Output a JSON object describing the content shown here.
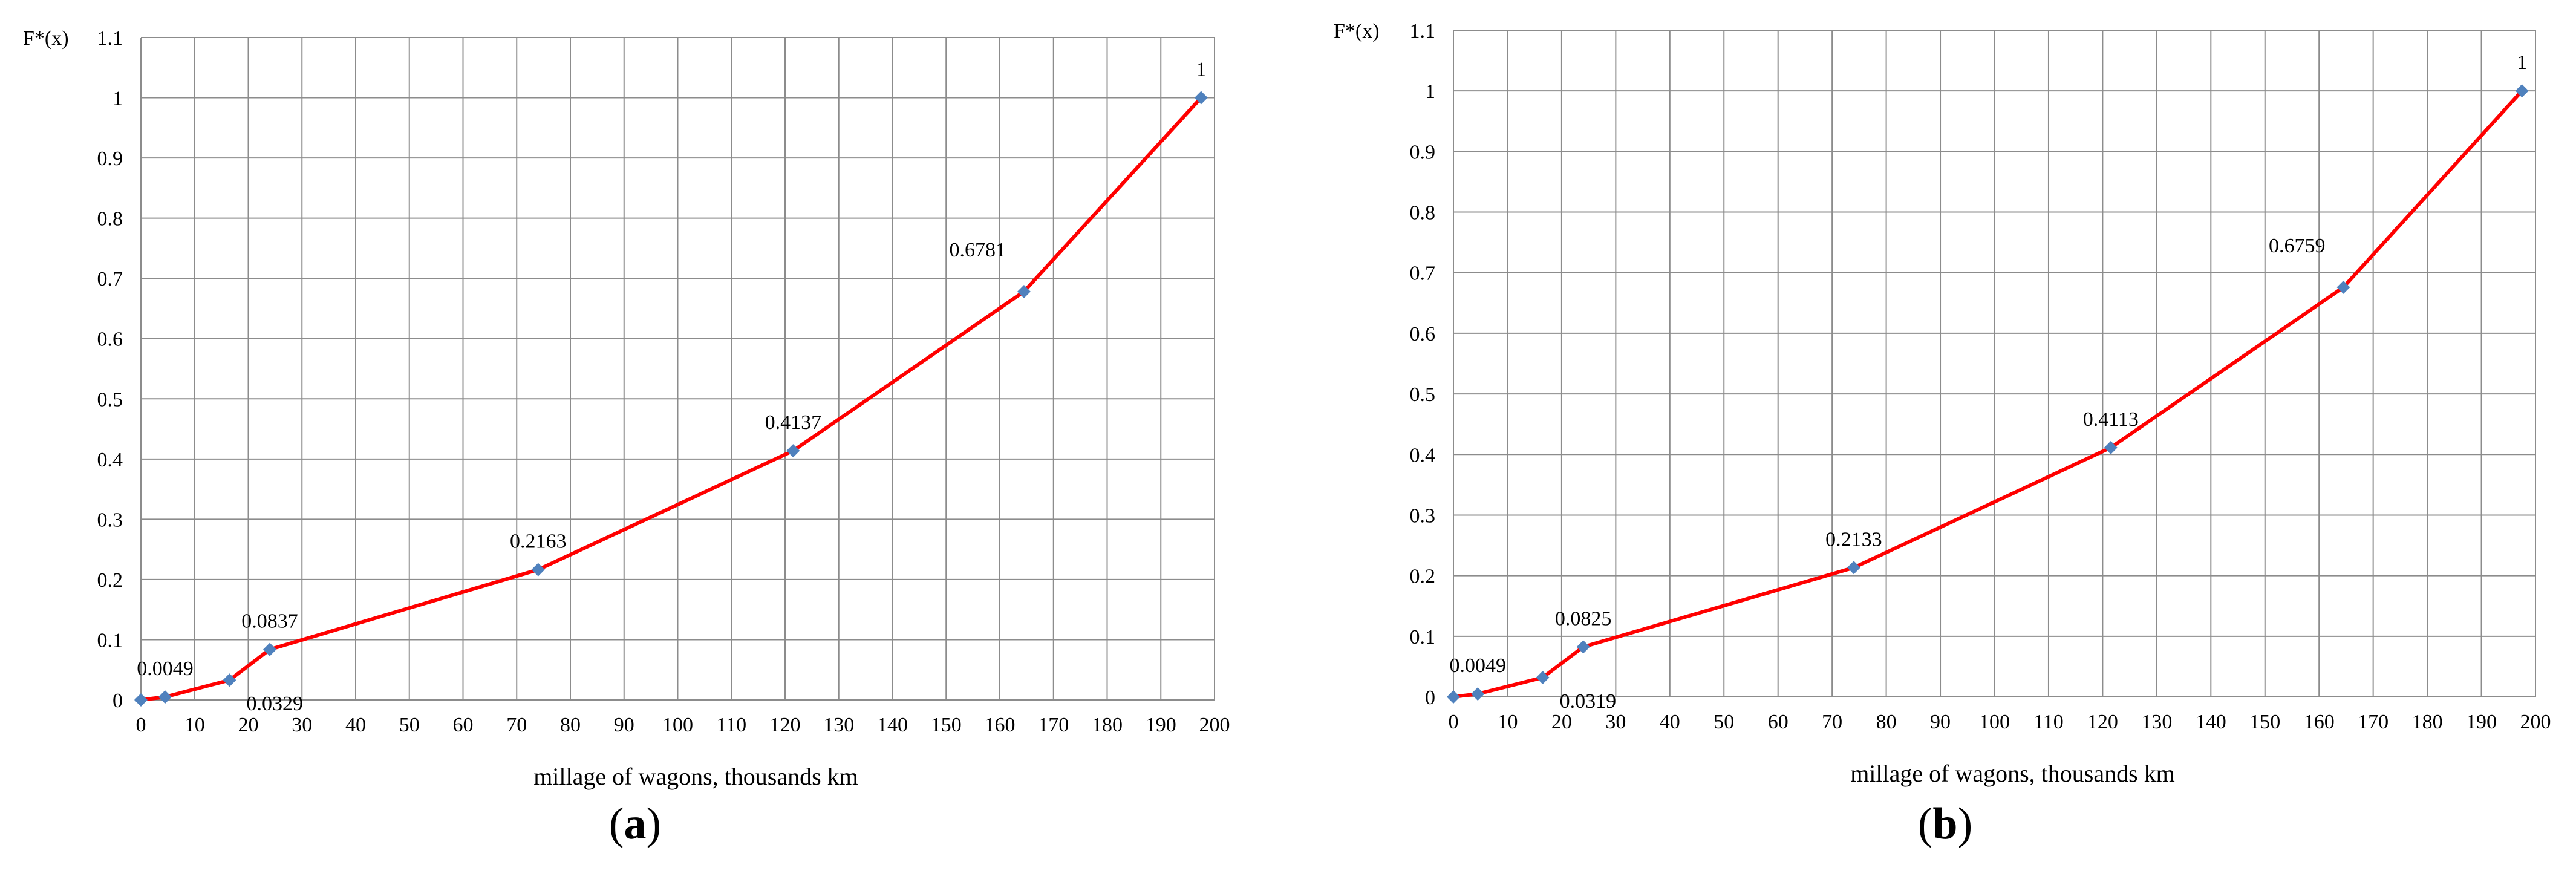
{
  "chart_data": [
    {
      "type": "line",
      "panel_label": "a",
      "ylabel": "F*(x)",
      "xlabel": "millage of wagons, thousands km",
      "xlim": [
        0,
        200
      ],
      "ylim": [
        0,
        1.1
      ],
      "xticks": [
        0,
        10,
        20,
        30,
        40,
        50,
        60,
        70,
        80,
        90,
        100,
        110,
        120,
        130,
        140,
        150,
        160,
        170,
        180,
        190,
        200
      ],
      "yticks": [
        "0",
        "0.1",
        "0.2",
        "0.3",
        "0.4",
        "0.5",
        "0.6",
        "0.7",
        "0.8",
        "0.9",
        "1",
        "1.1"
      ],
      "grid": true,
      "line_color": "#ff0000",
      "marker_color": "#4f81bd",
      "points": [
        {
          "x": 0,
          "y": 0,
          "label": ""
        },
        {
          "x": 4.5,
          "y": 0.0049,
          "label": "0.0049",
          "pos": "above"
        },
        {
          "x": 16.5,
          "y": 0.0329,
          "label": "0.0329",
          "pos": "below-right"
        },
        {
          "x": 24,
          "y": 0.0837,
          "label": "0.0837",
          "pos": "above"
        },
        {
          "x": 74,
          "y": 0.2163,
          "label": "0.2163",
          "pos": "above"
        },
        {
          "x": 121.5,
          "y": 0.4137,
          "label": "0.4137",
          "pos": "above"
        },
        {
          "x": 164.5,
          "y": 0.6781,
          "label": "0.6781",
          "pos": "above-left"
        },
        {
          "x": 197.5,
          "y": 1.0,
          "label": "1",
          "pos": "above"
        }
      ]
    },
    {
      "type": "line",
      "panel_label": "b",
      "ylabel": "F*(x)",
      "xlabel": "millage of wagons, thousands km",
      "xlim": [
        0,
        200
      ],
      "ylim": [
        0,
        1.1
      ],
      "xticks": [
        0,
        10,
        20,
        30,
        40,
        50,
        60,
        70,
        80,
        90,
        100,
        110,
        120,
        130,
        140,
        150,
        160,
        170,
        180,
        190,
        200
      ],
      "yticks": [
        "0",
        "0.1",
        "0.2",
        "0.3",
        "0.4",
        "0.5",
        "0.6",
        "0.7",
        "0.8",
        "0.9",
        "1",
        "1.1"
      ],
      "grid": true,
      "line_color": "#ff0000",
      "marker_color": "#4f81bd",
      "points": [
        {
          "x": 0,
          "y": 0,
          "label": ""
        },
        {
          "x": 4.5,
          "y": 0.0049,
          "label": "0.0049",
          "pos": "above"
        },
        {
          "x": 16.5,
          "y": 0.0319,
          "label": "0.0319",
          "pos": "below-right"
        },
        {
          "x": 24,
          "y": 0.0825,
          "label": "0.0825",
          "pos": "above"
        },
        {
          "x": 74,
          "y": 0.2133,
          "label": "0.2133",
          "pos": "above"
        },
        {
          "x": 121.5,
          "y": 0.4113,
          "label": "0.4113",
          "pos": "above"
        },
        {
          "x": 164.5,
          "y": 0.6759,
          "label": "0.6759",
          "pos": "above-left"
        },
        {
          "x": 197.5,
          "y": 1.0,
          "label": "1",
          "pos": "above"
        }
      ]
    }
  ]
}
